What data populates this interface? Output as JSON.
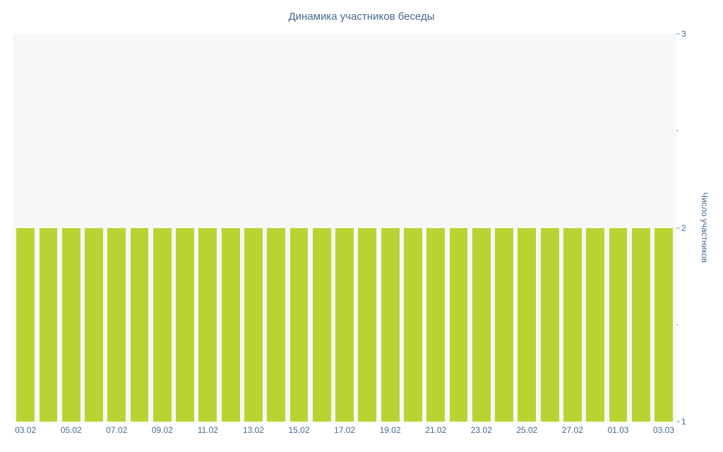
{
  "page": {
    "background": "#ffffff"
  },
  "chart_data": {
    "type": "bar",
    "title": "Динамика участников беседы",
    "xlabel": "",
    "ylabel": "Число участников",
    "ylim": [
      1,
      3
    ],
    "yticks": [
      1,
      2,
      3
    ],
    "y_minor_ticks": [
      1.5,
      2.5
    ],
    "y_axis_side": "right",
    "grid": "off",
    "legend": "none",
    "bar_count": 29,
    "x_tick_labels": [
      "03.02",
      "05.02",
      "07.02",
      "09.02",
      "11.02",
      "13.02",
      "15.02",
      "17.02",
      "19.02",
      "21.02",
      "23.02",
      "25.02",
      "27.02",
      "01.03",
      "03.03"
    ],
    "x_tick_every_n_bars": 2,
    "values": [
      2,
      2,
      2,
      2,
      2,
      2,
      2,
      2,
      2,
      2,
      2,
      2,
      2,
      2,
      2,
      2,
      2,
      2,
      2,
      2,
      2,
      2,
      2,
      2,
      2,
      2,
      2,
      2,
      2
    ],
    "bar_color": "#b8d433",
    "plot_background": "#f7f7f7",
    "text_color": "#45688e",
    "tick_color": "#8a97a8"
  }
}
